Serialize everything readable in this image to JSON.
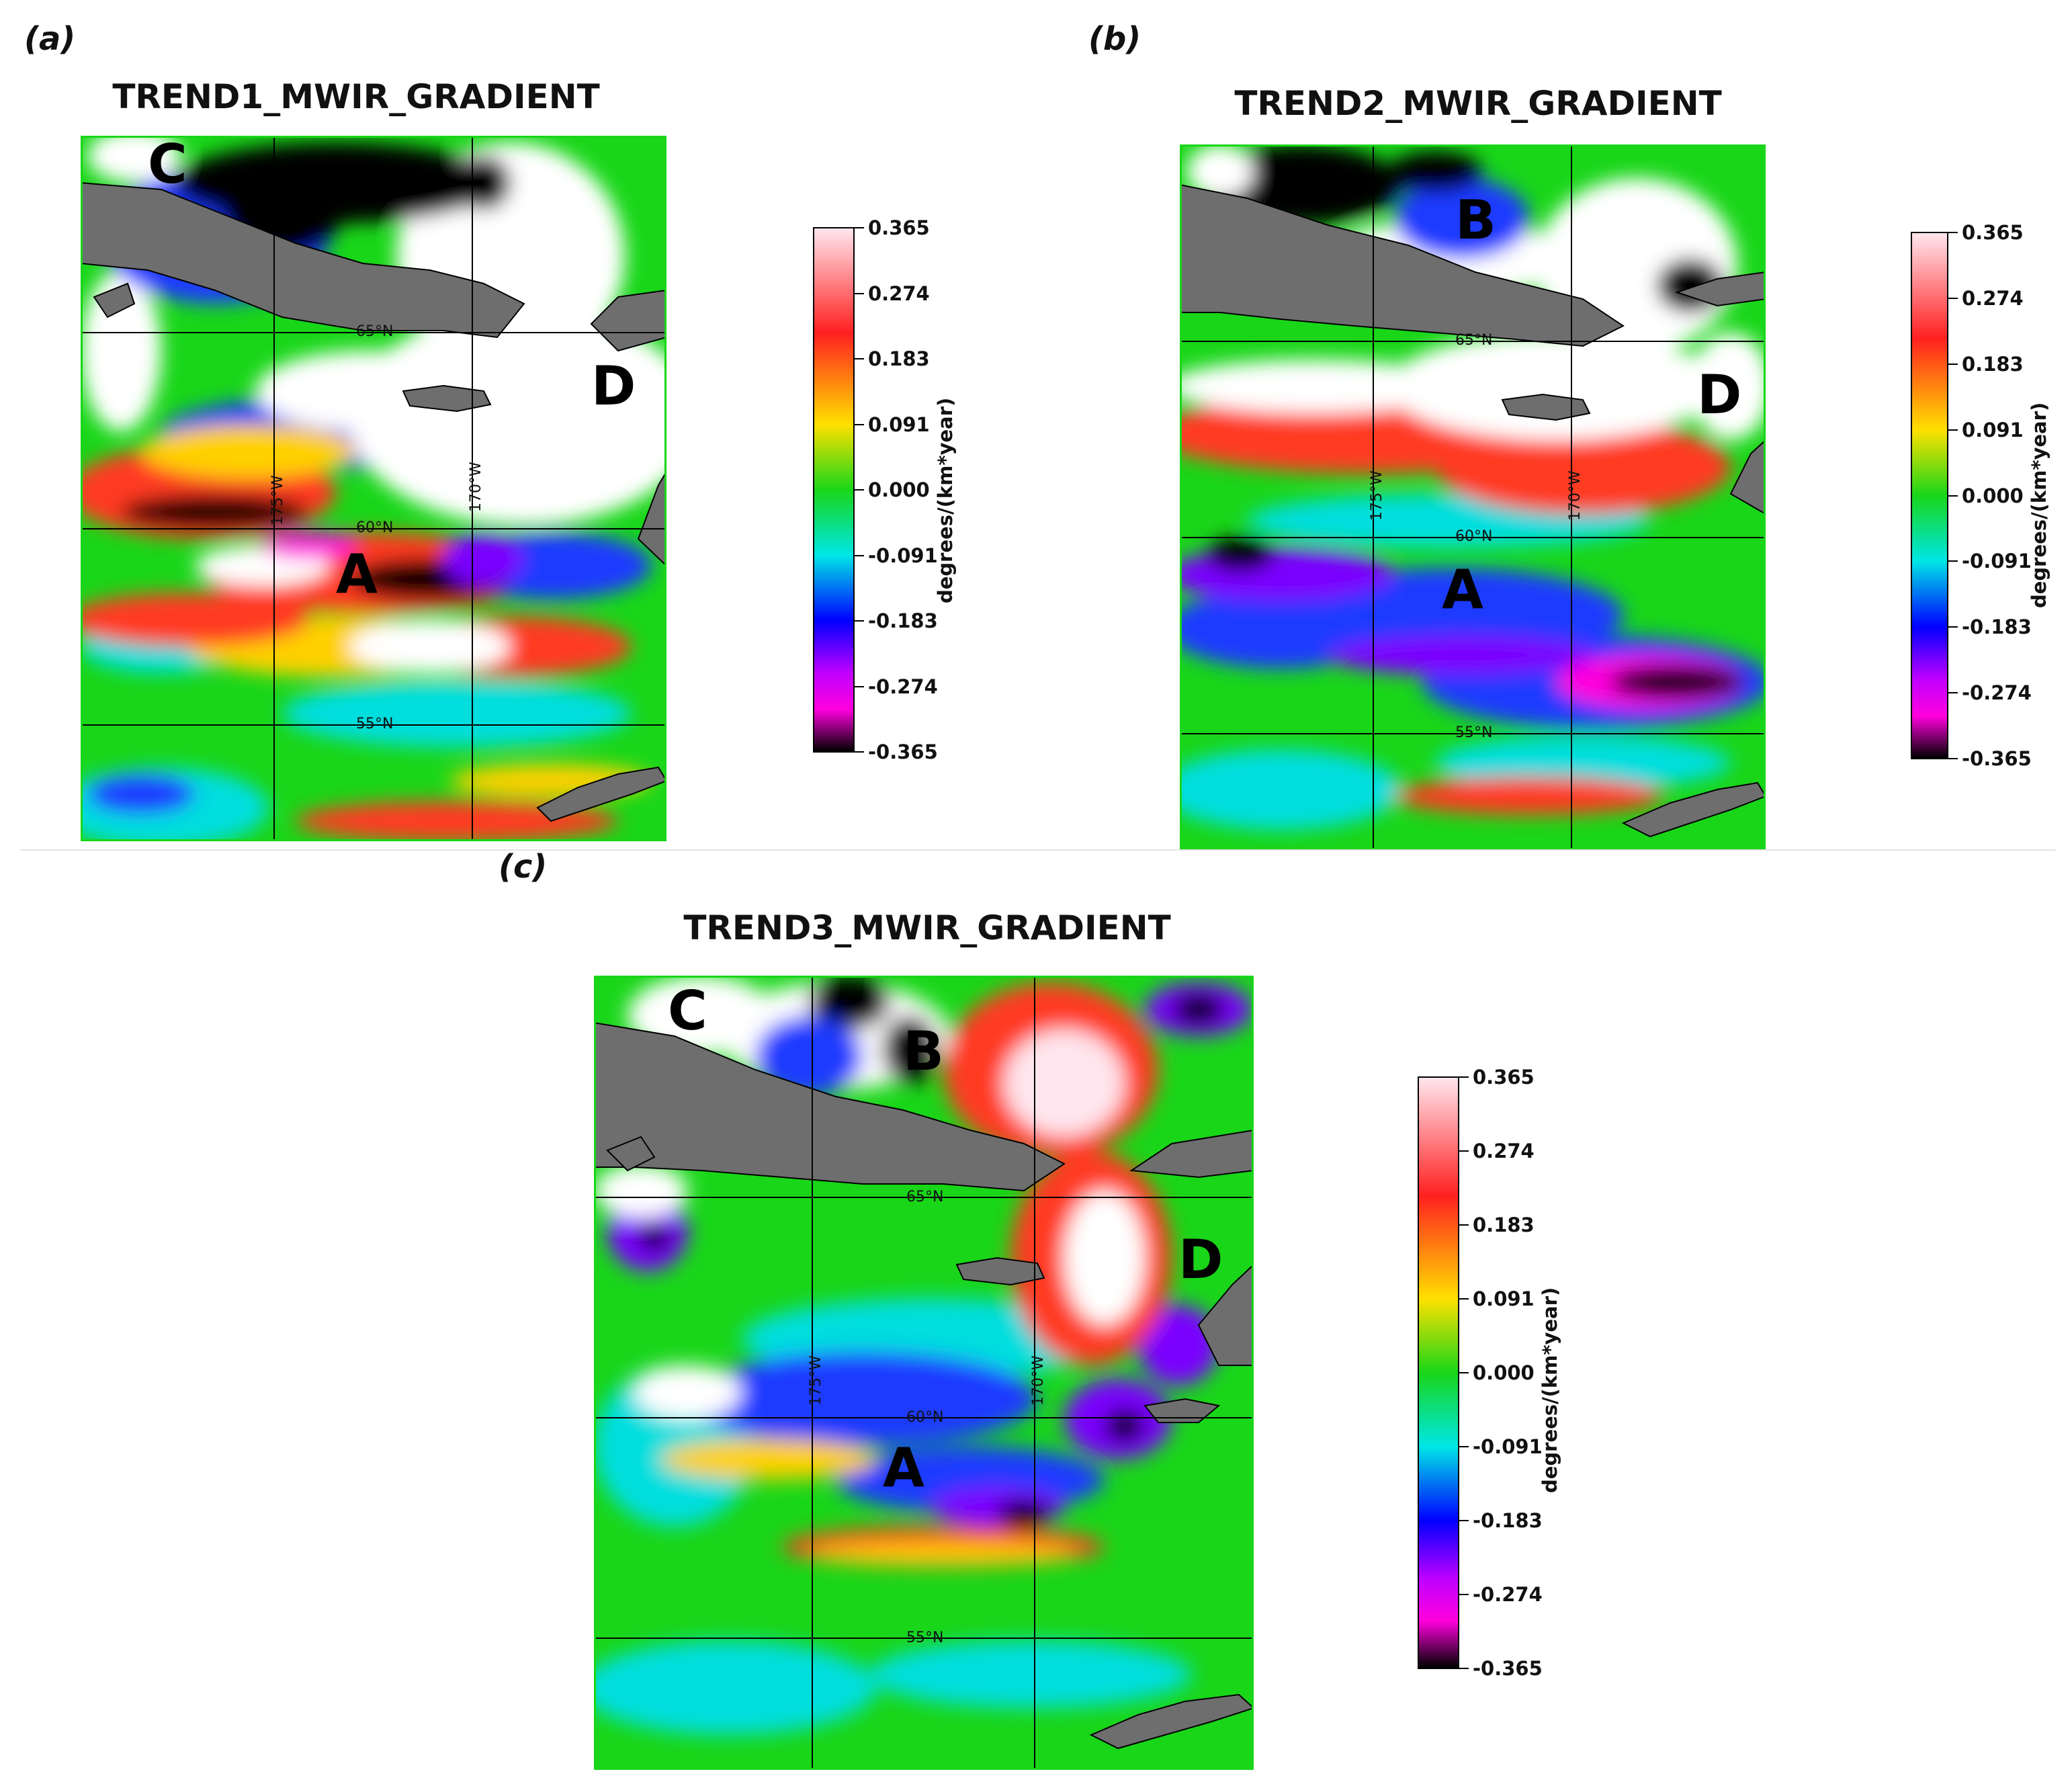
{
  "panels": [
    {
      "letter": "(a)",
      "title": "TREND1_MWIR_GRADIENT",
      "regions": [
        "C",
        "D",
        "A"
      ],
      "lat_labels": [
        "65°N",
        "60°N",
        "55°N"
      ],
      "lon_labels": [
        "175°W",
        "170°W"
      ]
    },
    {
      "letter": "(b)",
      "title": "TREND2_MWIR_GRADIENT",
      "regions": [
        "B",
        "D",
        "A"
      ],
      "lat_labels": [
        "65°N",
        "60°N",
        "55°N"
      ],
      "lon_labels": [
        "175°W",
        "170°W"
      ]
    },
    {
      "letter": "(c)",
      "title": "TREND3_MWIR_GRADIENT",
      "regions": [
        "C",
        "B",
        "D",
        "A"
      ],
      "lat_labels": [
        "65°N",
        "60°N",
        "55°N"
      ],
      "lon_labels": [
        "175°W",
        "170°W"
      ]
    }
  ],
  "colorbar": {
    "ticks": [
      "0.365",
      "0.274",
      "0.183",
      "0.091",
      "0.000",
      "-0.091",
      "-0.183",
      "-0.274",
      "-0.365"
    ],
    "unit": "degrees/(km*year)",
    "colors": {
      "max": "#ffe6ee",
      "high": "#ff2020",
      "mid_high": "#ffe000",
      "zero": "#19d619",
      "mid_low": "#00e6e6",
      "low": "#0000ff",
      "lower": "#c000ff",
      "lowest": "#ff00dd",
      "min": "#000000"
    }
  },
  "land_color": "#6e6e6e"
}
